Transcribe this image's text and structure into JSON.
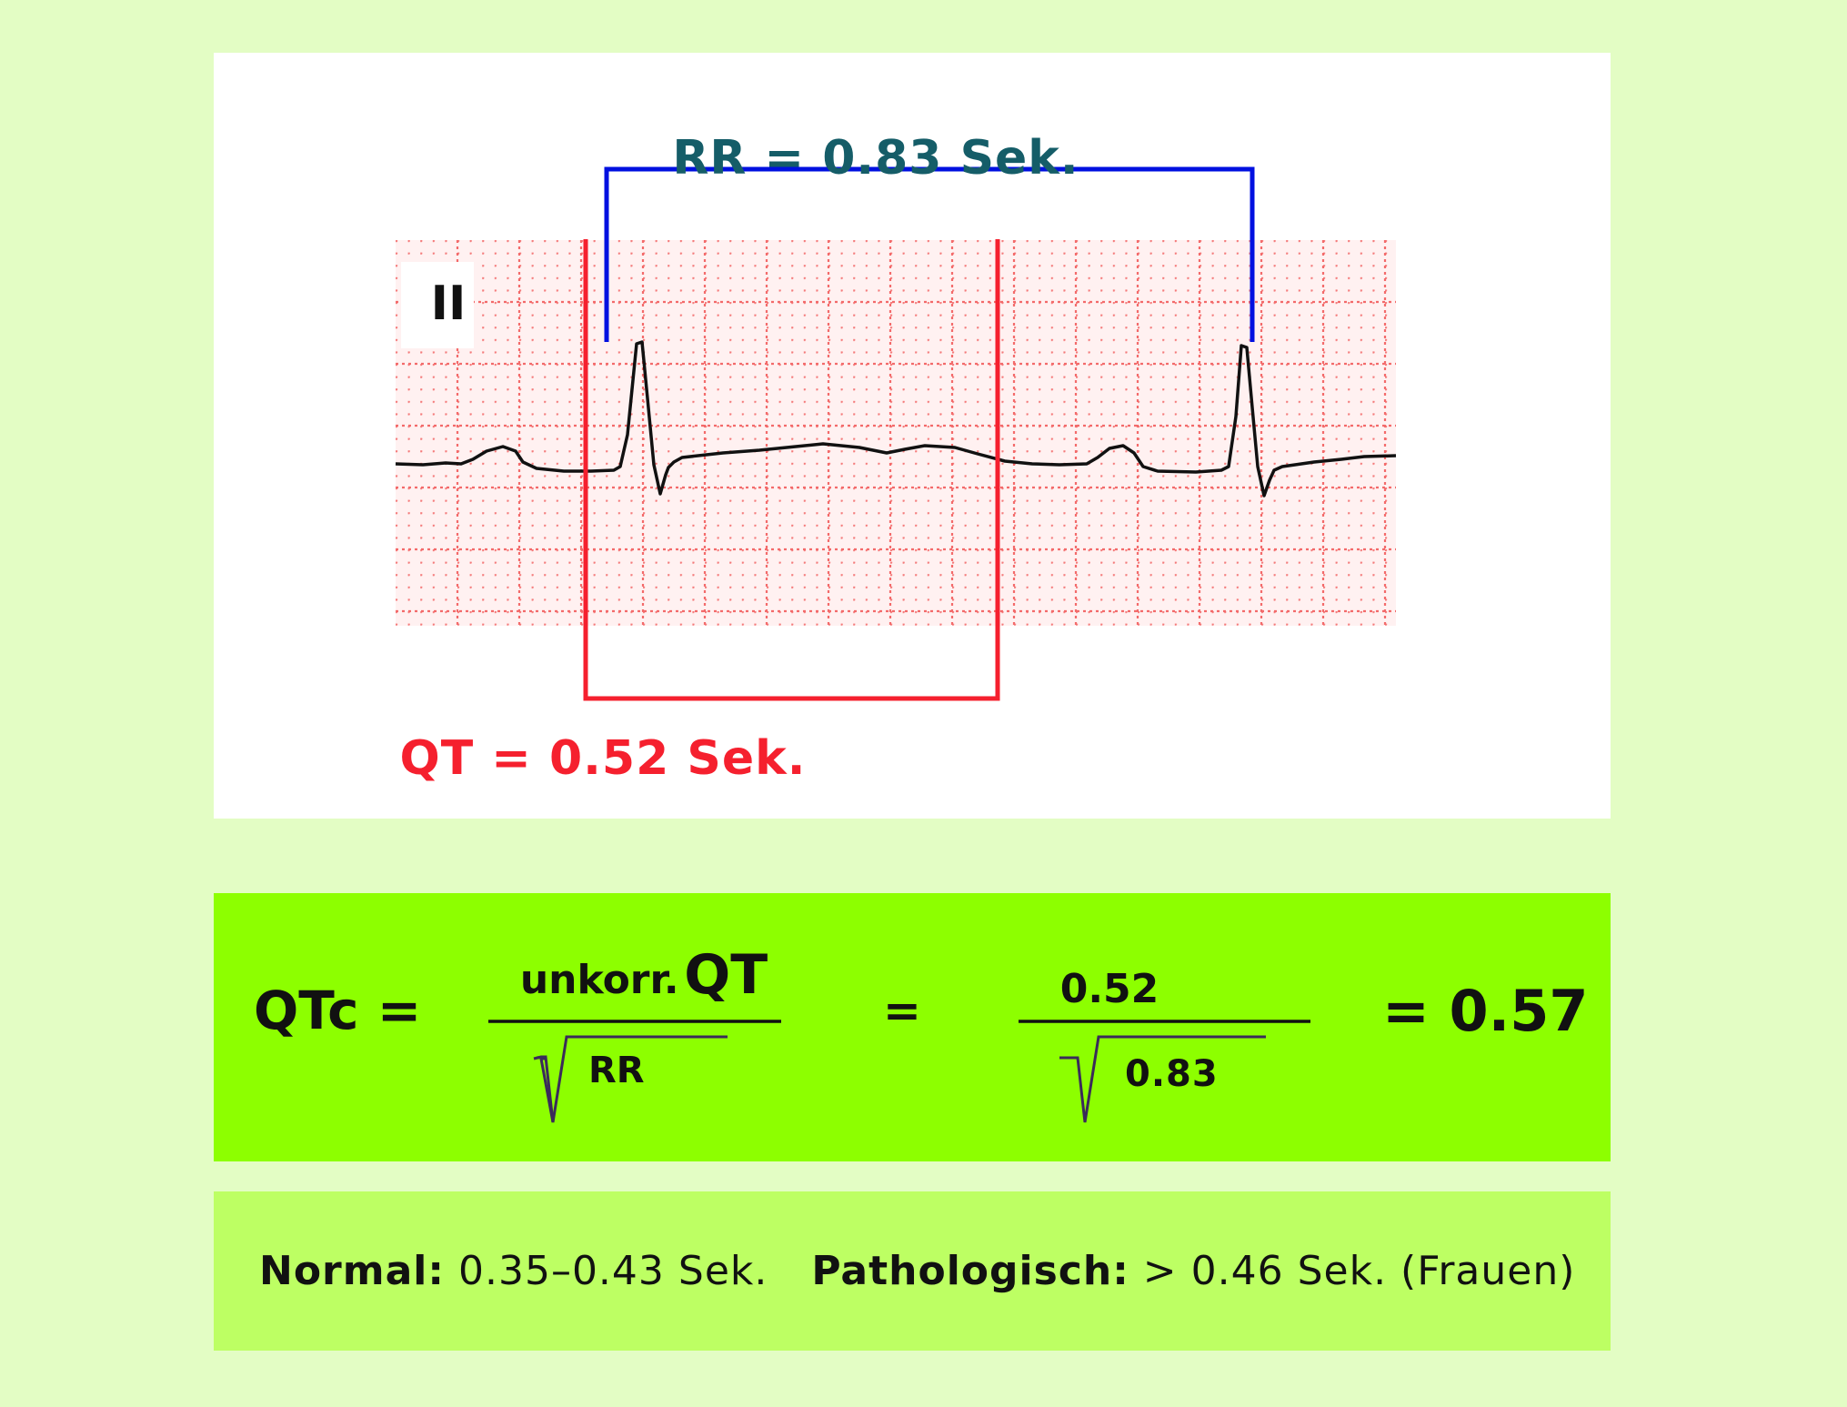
{
  "ecg": {
    "lead_label": "II",
    "rr_label": "RR = 0.83 Sek.",
    "qt_label": "QT = 0.52 Sek.",
    "colors": {
      "rr_bracket": "#0010e0",
      "qt_bracket": "#f5202e",
      "rr_text": "#155d68",
      "grid": "#f36a6a"
    }
  },
  "formula": {
    "lhs": "QTc =",
    "numerator_prefix": "unkorr.",
    "numerator_main": "QT",
    "denominator": "RR",
    "equals": "=",
    "numerator_value": "0.52",
    "denominator_value": "0.83",
    "result": "= 0.57"
  },
  "reference": {
    "normal_label": "Normal:",
    "normal_value": "0.35–0.43 Sek.",
    "patho_label": "Pathologisch:",
    "patho_value": "> 0.46 Sek. (Frauen)"
  }
}
